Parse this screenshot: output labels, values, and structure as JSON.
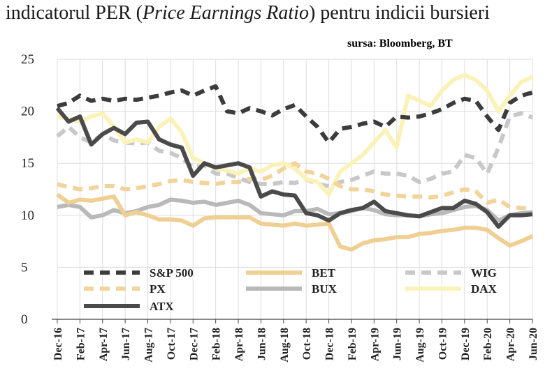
{
  "title": {
    "part1": "indicatorul PER (",
    "italic": "Price Earnings Ratio",
    "part2": ") pentru indicii bursieri"
  },
  "source": "sursa: Bloomberg, BT",
  "chart_data": {
    "type": "line",
    "ylim": [
      0,
      25
    ],
    "yticks": [
      0,
      5,
      10,
      15,
      20,
      25
    ],
    "grid": true,
    "legend_position": "bottom-left",
    "x": [
      "Dec-16",
      "Jan-17",
      "Feb-17",
      "Mar-17",
      "Apr-17",
      "May-17",
      "Jun-17",
      "Jul-17",
      "Aug-17",
      "Sep-17",
      "Oct-17",
      "Nov-17",
      "Dec-17",
      "Jan-18",
      "Feb-18",
      "Mar-18",
      "Apr-18",
      "May-18",
      "Jun-18",
      "Jul-18",
      "Aug-18",
      "Sep-18",
      "Oct-18",
      "Nov-18",
      "Dec-18",
      "Jan-19",
      "Feb-19",
      "Mar-19",
      "Apr-19",
      "May-19",
      "Jun-19",
      "Jul-19",
      "Aug-19",
      "Sep-19",
      "Oct-19",
      "Nov-19",
      "Dec-19",
      "Jan-20",
      "Feb-20",
      "Mar-20",
      "Apr-20",
      "May-20",
      "Jun-20"
    ],
    "x_tick_labels": [
      "Dec-16",
      "Feb-17",
      "Apr-17",
      "Jun-17",
      "Aug-17",
      "Oct-17",
      "Dec-17",
      "Feb-18",
      "Apr-18",
      "Jun-18",
      "Aug-18",
      "Oct-18",
      "Dec-18",
      "Feb-19",
      "Apr-19",
      "Jun-19",
      "Aug-19",
      "Oct-19",
      "Dec-19",
      "Feb-20",
      "Apr-20",
      "Jun-20"
    ],
    "series": [
      {
        "name": "WIG",
        "color": "#c8c8c8",
        "style": "dashed",
        "width": 6,
        "values": [
          17.6,
          18.5,
          17.5,
          17.0,
          17.8,
          17.2,
          17.0,
          16.9,
          17.0,
          16.2,
          16.0,
          15.5,
          14.6,
          14.8,
          14.0,
          14.0,
          13.6,
          13.2,
          13.0,
          13.0,
          13.2,
          13.1,
          13.5,
          13.0,
          12.8,
          13.2,
          13.4,
          13.8,
          14.2,
          14.0,
          14.0,
          13.8,
          13.2,
          13.5,
          14.0,
          14.2,
          15.8,
          15.5,
          14.0,
          16.5,
          19.5,
          19.8,
          19.4
        ]
      },
      {
        "name": "DAX",
        "color": "#fbf2b8",
        "style": "solid",
        "width": 6,
        "values": [
          19.5,
          19.3,
          19.0,
          19.5,
          19.8,
          18.5,
          17.0,
          17.3,
          17.0,
          18.5,
          19.3,
          18.0,
          15.5,
          15.0,
          14.5,
          14.3,
          14.0,
          14.5,
          14.2,
          14.8,
          15.0,
          14.5,
          13.5,
          13.2,
          12.0,
          14.2,
          15.0,
          15.8,
          17.0,
          18.2,
          16.5,
          21.5,
          21.0,
          20.5,
          22.0,
          23.0,
          23.5,
          23.0,
          22.0,
          20.0,
          21.5,
          22.8,
          23.3
        ]
      },
      {
        "name": "PX",
        "color": "#f2d49b",
        "style": "dashed",
        "width": 6,
        "values": [
          13.0,
          12.7,
          12.5,
          12.6,
          12.8,
          12.8,
          12.5,
          12.6,
          12.8,
          13.0,
          13.3,
          13.4,
          13.2,
          13.1,
          13.0,
          13.2,
          13.2,
          13.5,
          13.4,
          13.8,
          14.5,
          15.0,
          14.2,
          14.0,
          13.5,
          12.8,
          12.5,
          12.5,
          12.3,
          12.0,
          11.9,
          11.8,
          11.8,
          11.7,
          11.9,
          12.2,
          12.5,
          12.3,
          11.2,
          11.5,
          10.8,
          10.7,
          10.7
        ]
      },
      {
        "name": "BUX",
        "color": "#b9b9b9",
        "style": "solid",
        "width": 6,
        "values": [
          10.8,
          11.0,
          10.8,
          9.8,
          10.0,
          10.5,
          10.2,
          10.4,
          10.8,
          11.0,
          11.5,
          11.4,
          11.2,
          11.3,
          11.0,
          11.2,
          11.4,
          11.0,
          10.2,
          10.1,
          10.0,
          10.4,
          10.4,
          10.6,
          10.1,
          10.2,
          10.4,
          10.7,
          10.5,
          10.1,
          10.0,
          10.0,
          9.9,
          10.1,
          10.2,
          10.5,
          10.8,
          10.9,
          10.5,
          9.5,
          10.0,
          10.2,
          10.3
        ]
      },
      {
        "name": "BET",
        "color": "#f0cf93",
        "style": "solid",
        "width": 6,
        "values": [
          12.0,
          11.2,
          11.5,
          11.4,
          11.6,
          11.8,
          10.0,
          10.3,
          10.0,
          9.6,
          9.6,
          9.5,
          9.0,
          9.7,
          9.8,
          9.8,
          9.8,
          9.8,
          9.2,
          9.1,
          9.0,
          9.2,
          9.0,
          9.1,
          9.2,
          7.0,
          6.7,
          7.3,
          7.6,
          7.7,
          7.9,
          7.9,
          8.2,
          8.3,
          8.5,
          8.6,
          8.8,
          8.8,
          8.6,
          7.8,
          7.1,
          7.5,
          8.0
        ]
      },
      {
        "name": "S&P 500",
        "color": "#3c3c3c",
        "style": "dashed",
        "width": 6,
        "values": [
          20.5,
          20.8,
          21.5,
          21.0,
          21.2,
          21.0,
          21.2,
          21.1,
          21.3,
          21.5,
          21.8,
          22.0,
          21.5,
          22.0,
          22.4,
          20.0,
          19.8,
          20.3,
          20.0,
          19.6,
          20.2,
          20.6,
          19.5,
          18.5,
          17.0,
          18.3,
          18.5,
          18.8,
          19.0,
          18.5,
          19.5,
          19.4,
          19.5,
          19.8,
          20.2,
          20.8,
          21.2,
          21.0,
          19.5,
          18.2,
          20.8,
          21.5,
          21.8
        ]
      },
      {
        "name": "ATX",
        "color": "#4a4a4a",
        "style": "solid",
        "width": 6,
        "values": [
          20.3,
          19.0,
          19.5,
          16.8,
          17.8,
          18.4,
          17.8,
          18.9,
          19.0,
          17.3,
          16.8,
          16.5,
          13.8,
          15.0,
          14.6,
          14.8,
          15.0,
          14.6,
          11.8,
          12.3,
          12.0,
          11.9,
          10.2,
          10.0,
          9.5,
          10.2,
          10.5,
          10.7,
          11.3,
          10.4,
          10.2,
          10.0,
          9.9,
          10.3,
          10.7,
          10.7,
          11.4,
          11.1,
          10.3,
          8.9,
          10.0,
          10.0,
          10.1
        ]
      }
    ],
    "legend": [
      {
        "name": "S&P 500",
        "row": 0,
        "col": 0
      },
      {
        "name": "BET",
        "row": 0,
        "col": 1
      },
      {
        "name": "WIG",
        "row": 0,
        "col": 2
      },
      {
        "name": "PX",
        "row": 1,
        "col": 0
      },
      {
        "name": "BUX",
        "row": 1,
        "col": 1
      },
      {
        "name": "DAX",
        "row": 1,
        "col": 2
      },
      {
        "name": "ATX",
        "row": 2,
        "col": 0
      }
    ]
  }
}
